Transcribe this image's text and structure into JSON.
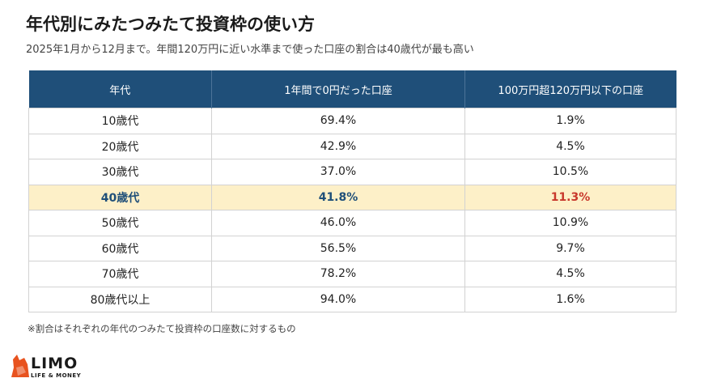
{
  "title": "年代別にみたつみたて投資枠の使い方",
  "subtitle": "2025年1月から12月まで。年間120万円に近い水準まで使った口座の割合は40歳代が最も高い",
  "note": "※割合はそれぞれの年代のつみたて投資枠の口座数に対するもの",
  "logo": {
    "main": "LIMO",
    "sub": "LIFE & MONEY",
    "icon": "fox-icon"
  },
  "colors": {
    "header": "#1f4f79",
    "highlight_row": "#fdf0c8",
    "highlight_text": "#c8382c"
  },
  "chart_data": {
    "type": "table",
    "columns": [
      "年代",
      "1年間で0円だった口座",
      "100万円超120万円以下の口座"
    ],
    "highlight_row": 3,
    "rows": [
      [
        "10歳代",
        "69.4%",
        "1.9%"
      ],
      [
        "20歳代",
        "42.9%",
        "4.5%"
      ],
      [
        "30歳代",
        "37.0%",
        "10.5%"
      ],
      [
        "40歳代",
        "41.8%",
        "11.3%"
      ],
      [
        "50歳代",
        "46.0%",
        "10.9%"
      ],
      [
        "60歳代",
        "56.5%",
        "9.7%"
      ],
      [
        "70歳代",
        "78.2%",
        "4.5%"
      ],
      [
        "80歳代以上",
        "94.0%",
        "1.6%"
      ]
    ]
  }
}
